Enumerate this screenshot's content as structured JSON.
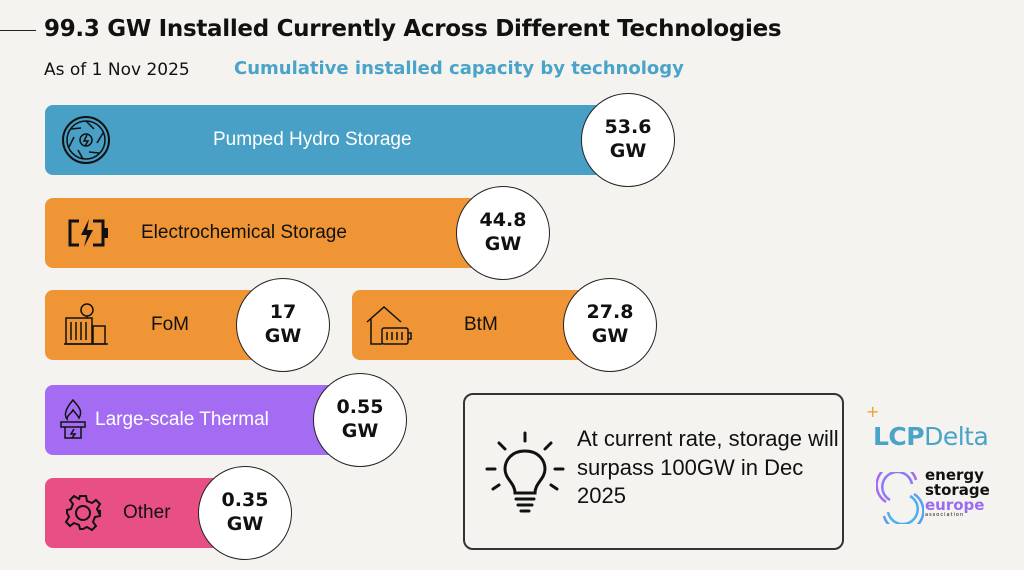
{
  "header": {
    "title": "99.3 GW Installed Currently Across Different Technologies",
    "as_of": "As of 1 Nov 2025",
    "subtitle": "Cumulative installed capacity by technology"
  },
  "colors": {
    "pumped_hydro": "#48a0c6",
    "electrochemical": "#f09535",
    "large_scale_thermal": "#a46cf2",
    "other": "#e84f85",
    "accent": "#4aa3c8"
  },
  "chart_data": {
    "type": "bar",
    "title": "Cumulative installed capacity by technology",
    "unit": "GW",
    "total": 99.3,
    "categories": [
      "Pumped Hydro Storage",
      "Electrochemical Storage",
      "FoM",
      "BtM",
      "Large-scale Thermal",
      "Other"
    ],
    "values": [
      53.6,
      44.8,
      17,
      27.8,
      0.55,
      0.35
    ],
    "labels": [
      {
        "name": "Pumped Hydro Storage",
        "value": "53.6",
        "unit": "GW",
        "icon": "turbine-icon"
      },
      {
        "name": "Electrochemical Storage",
        "value": "44.8",
        "unit": "GW",
        "icon": "battery-bolt-icon"
      },
      {
        "name": "FoM",
        "value": "17",
        "unit": "GW",
        "icon": "utility-battery-icon"
      },
      {
        "name": "BtM",
        "value": "27.8",
        "unit": "GW",
        "icon": "home-battery-icon"
      },
      {
        "name": "Large-scale Thermal",
        "value": "0.55",
        "unit": "GW",
        "icon": "flame-icon"
      },
      {
        "name": "Other",
        "value": "0.35",
        "unit": "GW",
        "icon": "gear-icon"
      }
    ]
  },
  "callout": {
    "text": "At current rate, storage will surpass 100GW in Dec 2025",
    "icon": "lightbulb-icon"
  },
  "logos": {
    "lcp_a": "LCP",
    "lcp_b": "Delta",
    "ese_1": "energy",
    "ese_2": "storage",
    "ese_3": "europe",
    "ese_4": "association"
  }
}
